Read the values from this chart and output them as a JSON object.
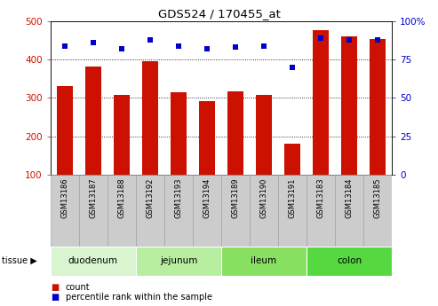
{
  "title": "GDS524 / 170455_at",
  "samples": [
    "GSM13186",
    "GSM13187",
    "GSM13188",
    "GSM13192",
    "GSM13193",
    "GSM13194",
    "GSM13189",
    "GSM13190",
    "GSM13191",
    "GSM13183",
    "GSM13184",
    "GSM13185"
  ],
  "counts": [
    330,
    382,
    308,
    395,
    315,
    292,
    318,
    308,
    180,
    478,
    462,
    453
  ],
  "percentiles": [
    84,
    86,
    82,
    88,
    84,
    82,
    83,
    84,
    70,
    89,
    88,
    88
  ],
  "tissues": [
    {
      "name": "duodenum",
      "start": 0,
      "end": 3
    },
    {
      "name": "jejunum",
      "start": 3,
      "end": 6
    },
    {
      "name": "ileum",
      "start": 6,
      "end": 9
    },
    {
      "name": "colon",
      "start": 9,
      "end": 12
    }
  ],
  "tissue_bg_colors": [
    "#d8f5d0",
    "#b8eea0",
    "#88e060",
    "#55d840"
  ],
  "bar_color": "#cc1100",
  "dot_color": "#0000cc",
  "ylim_left": [
    100,
    500
  ],
  "ylim_right": [
    0,
    100
  ],
  "yticks_left": [
    100,
    200,
    300,
    400,
    500
  ],
  "yticks_right": [
    0,
    25,
    50,
    75,
    100
  ],
  "tick_color_left": "#cc1100",
  "tick_color_right": "#0000cc",
  "sample_box_color": "#cccccc",
  "sample_box_edge": "#999999",
  "plot_bg": "#ffffff",
  "legend_count_color": "#cc1100",
  "legend_dot_color": "#0000cc"
}
